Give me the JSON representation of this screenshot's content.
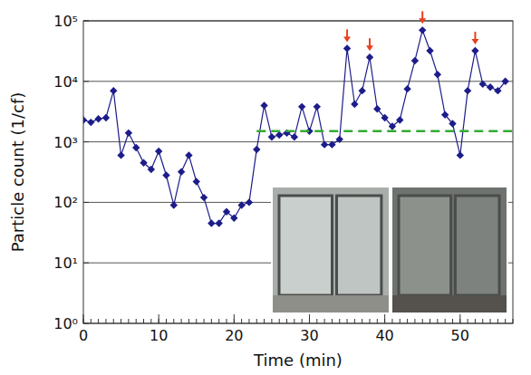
{
  "chart_data": {
    "type": "line",
    "x_label": "Time (min)",
    "y_label": "Particle count (1/cf)",
    "log": "y",
    "grid": true,
    "color": "#1c1c8a",
    "marker": "diamond",
    "xlim": [
      0,
      57
    ],
    "xticks": [
      0,
      10,
      20,
      30,
      40,
      50
    ],
    "ylim": [
      1,
      100000
    ],
    "yticks": [
      {
        "value": 1,
        "label": "10⁰"
      },
      {
        "value": 10,
        "label": "10¹"
      },
      {
        "value": 100,
        "label": "10²"
      },
      {
        "value": 1000,
        "label": "10³"
      },
      {
        "value": 10000,
        "label": "10⁴"
      },
      {
        "value": 100000,
        "label": "10⁵"
      }
    ],
    "x": [
      0,
      1,
      2,
      3,
      4,
      5,
      6,
      7,
      8,
      9,
      10,
      11,
      12,
      13,
      14,
      15,
      16,
      17,
      18,
      19,
      20,
      21,
      22,
      23,
      24,
      25,
      26,
      27,
      28,
      29,
      30,
      31,
      32,
      33,
      34,
      35,
      36,
      37,
      38,
      39,
      40,
      41,
      42,
      43,
      44,
      45,
      46,
      47,
      48,
      49,
      50,
      51,
      52,
      53,
      54,
      55,
      56
    ],
    "values": [
      2300,
      2100,
      2400,
      2500,
      7000,
      600,
      1400,
      800,
      450,
      350,
      700,
      280,
      90,
      320,
      600,
      220,
      120,
      45,
      45,
      70,
      55,
      90,
      100,
      750,
      4000,
      1200,
      1300,
      1400,
      1200,
      3800,
      1500,
      3800,
      900,
      900,
      1100,
      35000,
      4200,
      7000,
      25000,
      3500,
      2500,
      1800,
      2300,
      7500,
      22000,
      70000,
      32000,
      13000,
      2800,
      2000,
      600,
      7000,
      32000,
      9000,
      8000,
      7000,
      10000
    ],
    "annotations": [
      {
        "type": "arrow",
        "x": 35,
        "color": "#e8401c"
      },
      {
        "type": "arrow",
        "x": 38,
        "color": "#e8401c"
      },
      {
        "type": "arrow",
        "x": 45,
        "color": "#e8401c"
      },
      {
        "type": "arrow",
        "x": 52,
        "color": "#e8401c"
      }
    ],
    "reference_lines": [
      {
        "y": 1500,
        "x": [
          23,
          57
        ],
        "color": "#33aa33",
        "line_style": "dashed"
      }
    ]
  }
}
